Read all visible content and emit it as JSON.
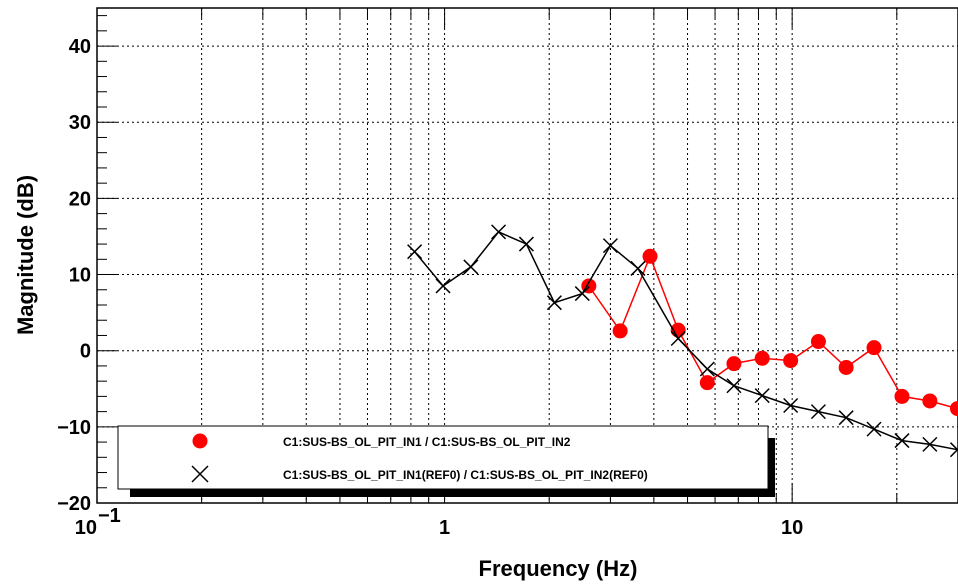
{
  "chart_data": {
    "type": "line",
    "title": "",
    "xlabel": "Frequency (Hz)",
    "ylabel": "Magnitude (dB)",
    "x_scale": "log",
    "xlim": [
      0.1,
      30
    ],
    "ylim": [
      -20,
      45
    ],
    "grid": true,
    "legend_position": "bottom-left",
    "x_tick_labels": [
      "10^-1",
      "1",
      "10"
    ],
    "y_ticks": [
      -20,
      -10,
      0,
      10,
      20,
      30,
      40
    ],
    "y_tick_labels": [
      "−20",
      "−10",
      "0",
      "10",
      "20",
      "30",
      "40"
    ],
    "series": [
      {
        "name": "C1:SUS-BS_OL_PIT_IN1 / C1:SUS-BS_OL_PIT_IN2",
        "color": "#ff0000",
        "marker": "circle",
        "x": [
          2.6,
          3.2,
          3.9,
          4.7,
          5.7,
          6.8,
          8.2,
          9.9,
          11.9,
          14.3,
          17.2,
          20.7,
          24.9,
          29.9
        ],
        "y": [
          8.5,
          2.6,
          12.4,
          2.7,
          -4.2,
          -1.7,
          -1.0,
          -1.3,
          1.2,
          -2.2,
          0.4,
          -6.0,
          -6.6,
          -7.6
        ]
      },
      {
        "name": "C1:SUS-BS_OL_PIT_IN1(REF0) / C1:SUS-BS_OL_PIT_IN2(REF0)",
        "color": "#000000",
        "marker": "x",
        "x": [
          0.82,
          0.99,
          1.19,
          1.43,
          1.72,
          2.07,
          2.49,
          3.0,
          3.6,
          4.7,
          5.7,
          6.8,
          8.2,
          9.9,
          11.9,
          14.3,
          17.2,
          20.7,
          24.9,
          29.9
        ],
        "y": [
          13.0,
          8.5,
          11.0,
          15.6,
          14.0,
          6.3,
          7.5,
          13.8,
          10.8,
          1.6,
          -2.4,
          -4.6,
          -5.9,
          -7.2,
          -8.0,
          -8.8,
          -10.3,
          -11.8,
          -12.3,
          -13.0
        ]
      }
    ]
  }
}
